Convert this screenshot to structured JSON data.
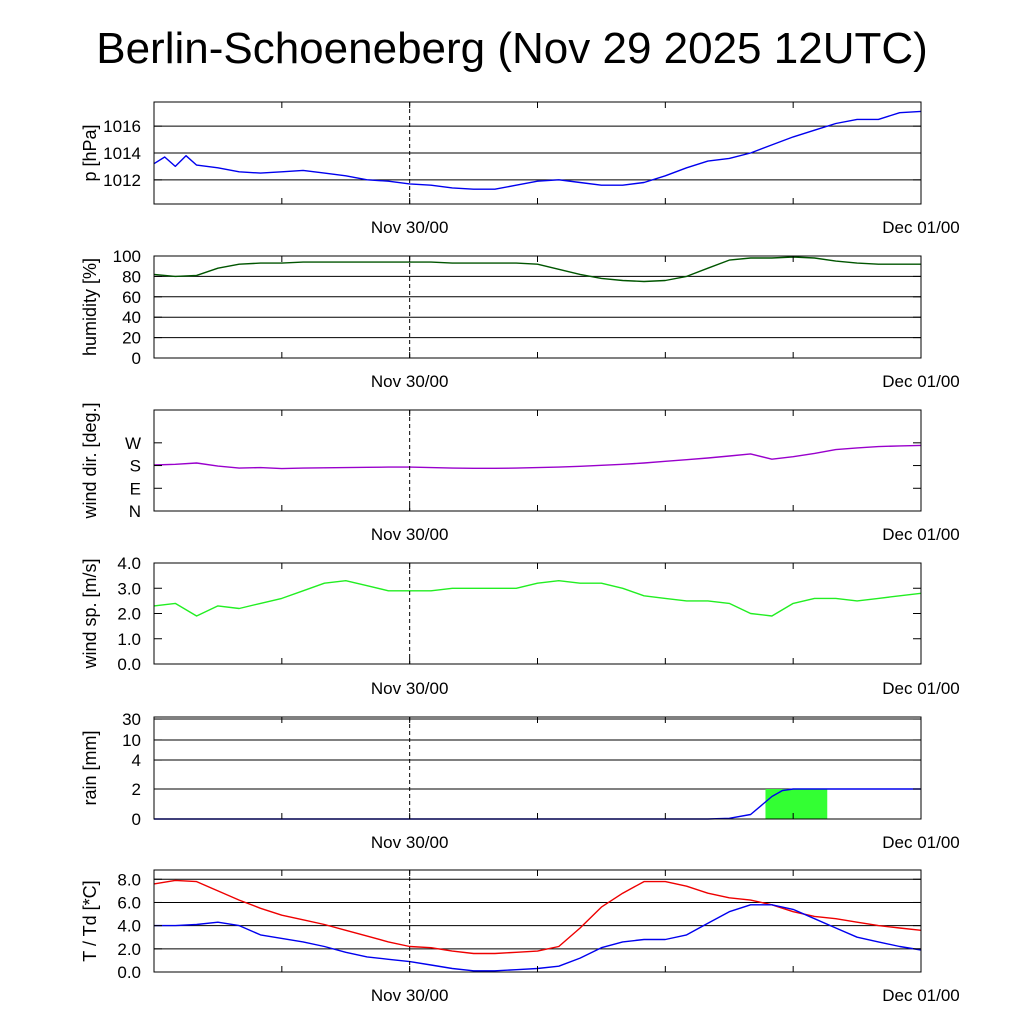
{
  "title": "Berlin-Schoeneberg (Nov 29 2025 12UTC)",
  "chart_data": [
    {
      "type": "line",
      "ylabel": "p [hPa]",
      "xlabels": [
        "Nov 30/00",
        "Dec 01/00"
      ],
      "ylim": [
        1010.2,
        1017.8
      ],
      "yticks": [
        1012,
        1014,
        1016
      ],
      "ytick_labels": [
        "1012",
        "1014",
        "1016"
      ],
      "grid": true,
      "series": [
        {
          "color": "#0000ee",
          "x": [
            0,
            0.5,
            1,
            1.5,
            2,
            3,
            4,
            5,
            6,
            7,
            8,
            9,
            10,
            11,
            12,
            13,
            14,
            15,
            16,
            17,
            18,
            19,
            20,
            21,
            22,
            23,
            24,
            25,
            26,
            27,
            28,
            29,
            30,
            31,
            32,
            33,
            34,
            35,
            36
          ],
          "y": [
            1013.2,
            1013.7,
            1013.0,
            1013.8,
            1013.1,
            1012.9,
            1012.6,
            1012.5,
            1012.6,
            1012.7,
            1012.5,
            1012.3,
            1012.0,
            1011.9,
            1011.7,
            1011.6,
            1011.4,
            1011.3,
            1011.3,
            1011.6,
            1011.9,
            1012.0,
            1011.8,
            1011.6,
            1011.6,
            1011.8,
            1012.3,
            1012.9,
            1013.4,
            1013.6,
            1014.0,
            1014.6,
            1015.2,
            1015.7,
            1016.2,
            1016.5,
            1016.5,
            1017.0,
            1017.1
          ]
        }
      ]
    },
    {
      "type": "line",
      "ylabel": "humidity [%]",
      "xlabels": [
        "Nov 30/00",
        "Dec 01/00"
      ],
      "ylim": [
        0,
        100
      ],
      "yticks": [
        0,
        20,
        40,
        60,
        80,
        100
      ],
      "ytick_labels": [
        "0",
        "20",
        "40",
        "60",
        "80",
        "100"
      ],
      "grid": true,
      "series": [
        {
          "color": "#005500",
          "x": [
            0,
            1,
            2,
            3,
            4,
            5,
            6,
            7,
            8,
            9,
            10,
            11,
            12,
            13,
            14,
            15,
            16,
            17,
            18,
            19,
            20,
            21,
            22,
            23,
            24,
            25,
            26,
            27,
            28,
            29,
            30,
            31,
            32,
            33,
            34,
            35,
            36
          ],
          "y": [
            82,
            80,
            81,
            88,
            92,
            93,
            93,
            94,
            94,
            94,
            94,
            94,
            94,
            94,
            93,
            93,
            93,
            93,
            92,
            87,
            82,
            78,
            76,
            75,
            76,
            80,
            88,
            96,
            98,
            98,
            99,
            98,
            95,
            93,
            92,
            92,
            92
          ]
        }
      ]
    },
    {
      "type": "line",
      "ylabel": "wind dir. [deg.]",
      "xlabels": [
        "Nov 30/00",
        "Dec 01/00"
      ],
      "ylim": [
        0,
        400
      ],
      "yticks": [
        0,
        90,
        180,
        270
      ],
      "ytick_labels": [
        "N",
        "E",
        "S",
        "W"
      ],
      "grid": false,
      "series": [
        {
          "color": "#9900cc",
          "x": [
            0,
            1,
            2,
            3,
            4,
            5,
            6,
            7,
            8,
            9,
            10,
            11,
            12,
            13,
            14,
            15,
            16,
            17,
            18,
            19,
            20,
            21,
            22,
            23,
            24,
            25,
            26,
            27,
            28,
            29,
            30,
            31,
            32,
            33,
            34,
            35,
            36
          ],
          "y": [
            182,
            185,
            190,
            178,
            170,
            172,
            168,
            170,
            171,
            172,
            173,
            174,
            174,
            172,
            170,
            169,
            169,
            170,
            172,
            174,
            177,
            181,
            185,
            190,
            197,
            203,
            210,
            218,
            226,
            205,
            215,
            228,
            243,
            250,
            255,
            258,
            260
          ]
        }
      ]
    },
    {
      "type": "line",
      "ylabel": "wind sp. [m/s]",
      "xlabels": [
        "Nov 30/00",
        "Dec 01/00"
      ],
      "ylim": [
        0,
        4.0
      ],
      "yticks": [
        0,
        1,
        2,
        3,
        4
      ],
      "ytick_labels": [
        "0.0",
        "1.0",
        "2.0",
        "3.0",
        "4.0"
      ],
      "grid": false,
      "series": [
        {
          "color": "#22ee22",
          "x": [
            0,
            1,
            2,
            3,
            4,
            5,
            6,
            7,
            8,
            9,
            10,
            11,
            12,
            13,
            14,
            15,
            16,
            17,
            18,
            19,
            20,
            21,
            22,
            23,
            24,
            25,
            26,
            27,
            28,
            29,
            30,
            31,
            32,
            33,
            34,
            35,
            36
          ],
          "y": [
            2.3,
            2.4,
            1.9,
            2.3,
            2.2,
            2.4,
            2.6,
            2.9,
            3.2,
            3.3,
            3.1,
            2.9,
            2.9,
            2.9,
            3.0,
            3.0,
            3.0,
            3.0,
            3.2,
            3.3,
            3.2,
            3.2,
            3.0,
            2.7,
            2.6,
            2.5,
            2.5,
            2.4,
            2.0,
            1.9,
            2.4,
            2.6,
            2.6,
            2.5,
            2.6,
            2.7,
            2.8
          ]
        }
      ]
    },
    {
      "type": "area",
      "ylabel": "rain [mm]",
      "xlabels": [
        "Nov 30/00",
        "Dec 01/00"
      ],
      "yticks": [
        0,
        2,
        4,
        10,
        30
      ],
      "ytick_labels": [
        "0",
        "2",
        "4",
        "10",
        "30"
      ],
      "grid": true,
      "bars": [
        {
          "x_start": 28.7,
          "x_end": 31.6,
          "value": 2,
          "color": "#33ff33"
        }
      ],
      "series": [
        {
          "color": "#0000ee",
          "x": [
            0,
            25,
            26,
            27,
            28,
            29,
            29.5,
            30,
            36
          ],
          "y": [
            0,
            0,
            0,
            0.05,
            0.3,
            1.5,
            1.9,
            2.0,
            2.0
          ]
        }
      ]
    },
    {
      "type": "line",
      "ylabel": "T / Td [*C]",
      "xlabels": [
        "Nov 30/00",
        "Dec 01/00"
      ],
      "ylim": [
        0,
        8.8
      ],
      "yticks": [
        0,
        2,
        4,
        6,
        8
      ],
      "ytick_labels": [
        "0.0",
        "2.0",
        "4.0",
        "6.0",
        "8.0"
      ],
      "grid": true,
      "series": [
        {
          "color": "#ee0000",
          "x": [
            0,
            1,
            2,
            3,
            4,
            5,
            6,
            7,
            8,
            9,
            10,
            11,
            12,
            13,
            14,
            15,
            16,
            17,
            18,
            19,
            20,
            21,
            22,
            23,
            24,
            25,
            26,
            27,
            28,
            29,
            30,
            31,
            32,
            33,
            34,
            35,
            36
          ],
          "y": [
            7.6,
            7.9,
            7.8,
            7.0,
            6.2,
            5.5,
            4.9,
            4.5,
            4.1,
            3.6,
            3.1,
            2.6,
            2.2,
            2.1,
            1.8,
            1.6,
            1.6,
            1.7,
            1.8,
            2.2,
            3.8,
            5.6,
            6.8,
            7.8,
            7.8,
            7.4,
            6.8,
            6.4,
            6.2,
            5.8,
            5.2,
            4.8,
            4.6,
            4.3,
            4.0,
            3.8,
            3.6
          ]
        },
        {
          "color": "#0000ee",
          "x": [
            0,
            1,
            2,
            3,
            4,
            5,
            6,
            7,
            8,
            9,
            10,
            11,
            12,
            13,
            14,
            15,
            16,
            17,
            18,
            19,
            20,
            21,
            22,
            23,
            24,
            25,
            26,
            27,
            28,
            29,
            30,
            31,
            32,
            33,
            34,
            35,
            36
          ],
          "y": [
            4.0,
            4.0,
            4.1,
            4.3,
            4.0,
            3.2,
            2.9,
            2.6,
            2.2,
            1.7,
            1.3,
            1.1,
            0.9,
            0.6,
            0.3,
            0.1,
            0.1,
            0.2,
            0.3,
            0.5,
            1.2,
            2.1,
            2.6,
            2.8,
            2.8,
            3.2,
            4.2,
            5.2,
            5.8,
            5.8,
            5.4,
            4.6,
            3.8,
            3.0,
            2.6,
            2.2,
            1.9
          ]
        }
      ]
    }
  ]
}
